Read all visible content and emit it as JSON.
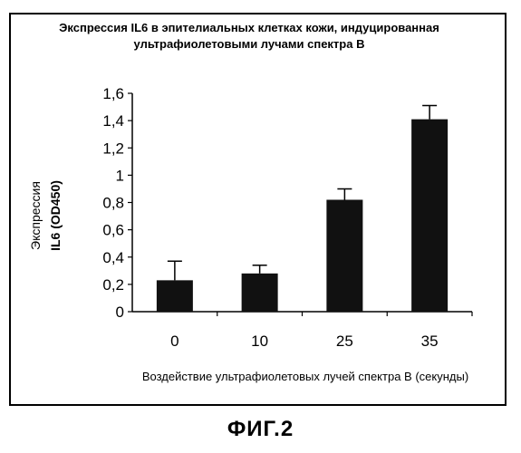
{
  "figure_caption": "ФИГ.2",
  "chart_data": {
    "type": "bar",
    "title": "Экспрессия IL6 в эпителиальных клетках кожи, индуцированная\nультрафиолетовыми лучами спектра В",
    "categories": [
      "0",
      "10",
      "25",
      "35"
    ],
    "values": [
      0.23,
      0.28,
      0.82,
      1.41
    ],
    "errors": [
      0.14,
      0.06,
      0.08,
      0.1
    ],
    "ylabel_line1": "Экспрессия",
    "ylabel_line2": "IL6 (OD450)",
    "xlabel": "Воздействие ультрафиолетовых лучей спектра В (секунды)",
    "ylim": [
      0,
      1.6
    ],
    "yticks": [
      0,
      0.2,
      0.4,
      0.6,
      0.8,
      1,
      1.2,
      1.4,
      1.6
    ],
    "ytick_labels": [
      "0",
      "0,2",
      "0,4",
      "0,6",
      "0,8",
      "1",
      "1,2",
      "1,4",
      "1,6"
    ],
    "grid": false,
    "legend": false,
    "bar_color": "#111111"
  }
}
